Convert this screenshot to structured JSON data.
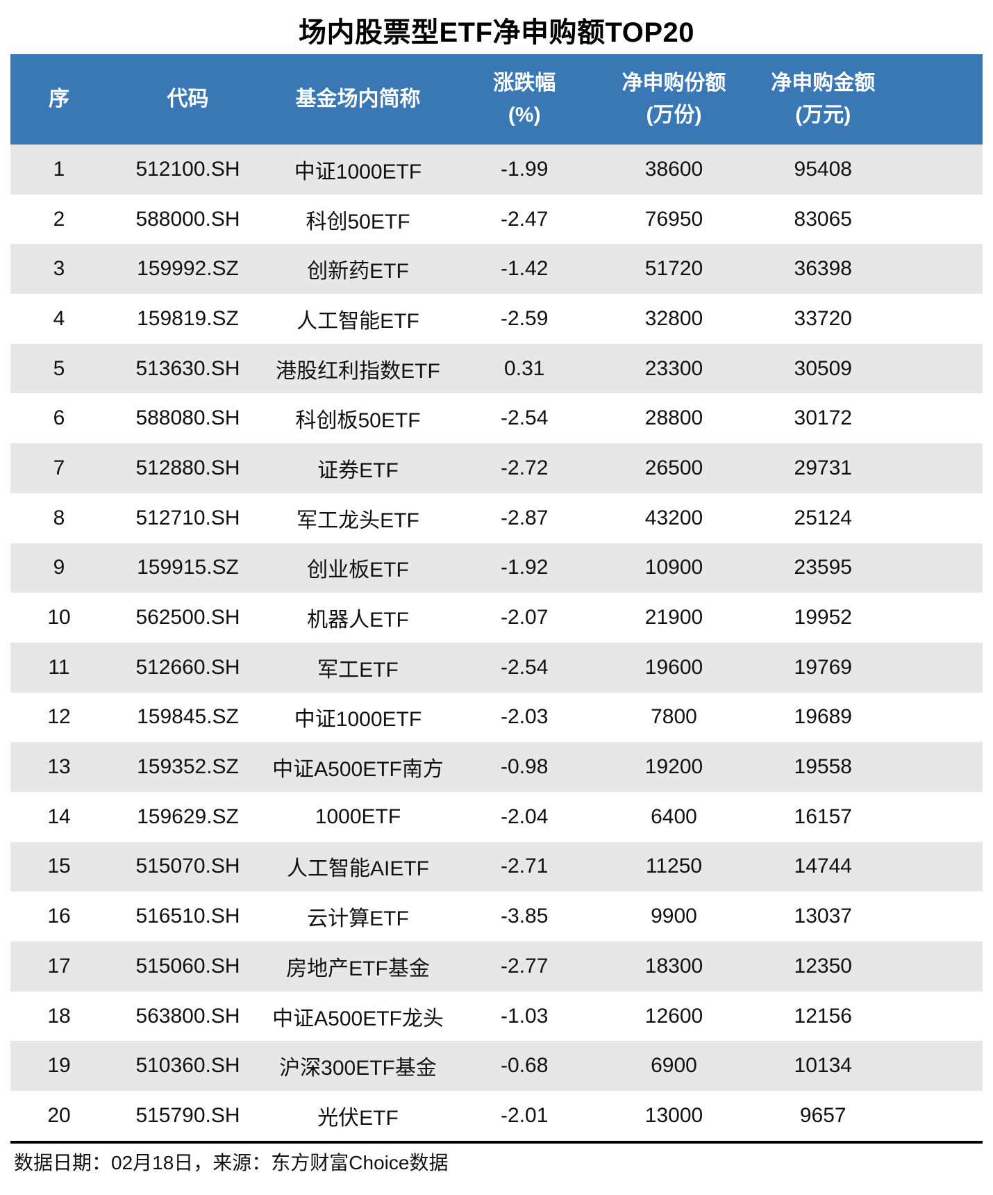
{
  "title": "场内股票型ETF净申购额TOP20",
  "chart_data": {
    "type": "table",
    "title": "场内股票型ETF净申购额TOP20",
    "columns": [
      {
        "label": "序",
        "sub": ""
      },
      {
        "label": "代码",
        "sub": ""
      },
      {
        "label": "基金场内简称",
        "sub": ""
      },
      {
        "label": "涨跌幅",
        "sub": "(%)"
      },
      {
        "label": "净申购份额",
        "sub": "(万份)"
      },
      {
        "label": "净申购金额",
        "sub": "(万元)"
      }
    ],
    "col_keys": [
      "rank",
      "code",
      "name",
      "change-pct",
      "net-shares",
      "net-amount"
    ],
    "rows": [
      [
        "1",
        "512100.SH",
        "中证1000ETF",
        "-1.99",
        "38600",
        "95408"
      ],
      [
        "2",
        "588000.SH",
        "科创50ETF",
        "-2.47",
        "76950",
        "83065"
      ],
      [
        "3",
        "159992.SZ",
        "创新药ETF",
        "-1.42",
        "51720",
        "36398"
      ],
      [
        "4",
        "159819.SZ",
        "人工智能ETF",
        "-2.59",
        "32800",
        "33720"
      ],
      [
        "5",
        "513630.SH",
        "港股红利指数ETF",
        "0.31",
        "23300",
        "30509"
      ],
      [
        "6",
        "588080.SH",
        "科创板50ETF",
        "-2.54",
        "28800",
        "30172"
      ],
      [
        "7",
        "512880.SH",
        "证券ETF",
        "-2.72",
        "26500",
        "29731"
      ],
      [
        "8",
        "512710.SH",
        "军工龙头ETF",
        "-2.87",
        "43200",
        "25124"
      ],
      [
        "9",
        "159915.SZ",
        "创业板ETF",
        "-1.92",
        "10900",
        "23595"
      ],
      [
        "10",
        "562500.SH",
        "机器人ETF",
        "-2.07",
        "21900",
        "19952"
      ],
      [
        "11",
        "512660.SH",
        "军工ETF",
        "-2.54",
        "19600",
        "19769"
      ],
      [
        "12",
        "159845.SZ",
        "中证1000ETF",
        "-2.03",
        "7800",
        "19689"
      ],
      [
        "13",
        "159352.SZ",
        "中证A500ETF南方",
        "-0.98",
        "19200",
        "19558"
      ],
      [
        "14",
        "159629.SZ",
        "1000ETF",
        "-2.04",
        "6400",
        "16157"
      ],
      [
        "15",
        "515070.SH",
        "人工智能AIETF",
        "-2.71",
        "11250",
        "14744"
      ],
      [
        "16",
        "516510.SH",
        "云计算ETF",
        "-3.85",
        "9900",
        "13037"
      ],
      [
        "17",
        "515060.SH",
        "房地产ETF基金",
        "-2.77",
        "18300",
        "12350"
      ],
      [
        "18",
        "563800.SH",
        "中证A500ETF龙头",
        "-1.03",
        "12600",
        "12156"
      ],
      [
        "19",
        "510360.SH",
        "沪深300ETF基金",
        "-0.68",
        "6900",
        "10134"
      ],
      [
        "20",
        "515790.SH",
        "光伏ETF",
        "-2.01",
        "13000",
        "9657"
      ]
    ]
  },
  "footer": {
    "note": "数据日期：02月18日，来源：东方财富Choice数据"
  },
  "colors": {
    "header_bg": "#3A78B5",
    "row_alt_bg": "#E7E7E7",
    "header_text": "#FFFFFF",
    "body_text": "#111111",
    "separator": "#000000"
  }
}
